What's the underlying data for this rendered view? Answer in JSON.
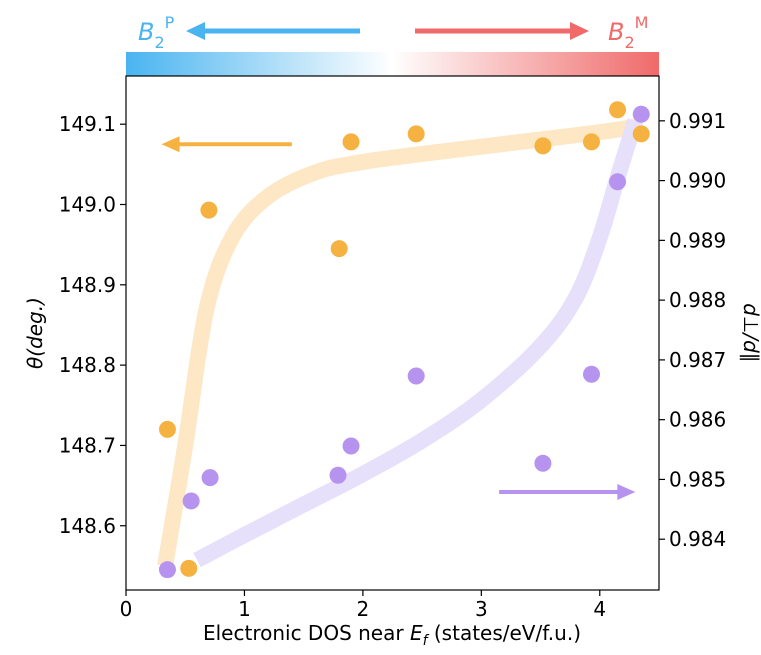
{
  "chart_data": {
    "type": "scatter",
    "xlabel_prefix": "Electronic DOS near ",
    "xlabel_var": "E",
    "xlabel_sub": "f",
    "xlabel_suffix": " (states/eV/f.u.)",
    "ylabel": "θ(deg.)",
    "y2label": "d⊥/d∥",
    "xlim": [
      0,
      4.5
    ],
    "ylim": [
      148.52,
      149.16
    ],
    "y2lim": [
      0.98315,
      0.99175
    ],
    "x_ticks": [
      0,
      1,
      2,
      3,
      4
    ],
    "y_ticks": [
      148.6,
      148.7,
      148.8,
      148.9,
      149.0,
      149.1
    ],
    "y_tick_labels": [
      "148.6",
      "148.7",
      "148.8",
      "148.9",
      "149.0",
      "149.1"
    ],
    "y2_ticks": [
      0.984,
      0.985,
      0.986,
      0.987,
      0.988,
      0.989,
      0.99,
      0.991
    ],
    "y2_tick_labels": [
      "0.984",
      "0.985",
      "0.986",
      "0.987",
      "0.988",
      "0.989",
      "0.990",
      "0.991"
    ],
    "grid": false,
    "phase_bar": {
      "left_label_base": "B",
      "left_label_sub": "2",
      "left_label_sup": "P",
      "right_label_base": "B",
      "right_label_sub": "2",
      "right_label_sup": "M",
      "left_color": "#4ab4f0",
      "right_color": "#f06a6a"
    },
    "series": [
      {
        "axis": "left",
        "color": "#f5b240",
        "trend_color": "#fde7c4",
        "points": [
          [
            0.35,
            148.72
          ],
          [
            0.53,
            148.547
          ],
          [
            0.7,
            148.993
          ],
          [
            1.8,
            148.945
          ],
          [
            1.9,
            149.078
          ],
          [
            2.45,
            149.088
          ],
          [
            3.52,
            149.073
          ],
          [
            3.93,
            149.078
          ],
          [
            4.15,
            149.118
          ],
          [
            4.35,
            149.088
          ]
        ],
        "trend": [
          [
            0.33,
            148.55
          ],
          [
            0.5,
            148.7
          ],
          [
            0.68,
            148.87
          ],
          [
            0.9,
            148.96
          ],
          [
            1.2,
            149.01
          ],
          [
            1.6,
            149.04
          ],
          [
            2.0,
            149.053
          ],
          [
            2.5,
            149.063
          ],
          [
            3.0,
            149.072
          ],
          [
            3.5,
            149.081
          ],
          [
            4.0,
            149.09
          ],
          [
            4.35,
            149.098
          ]
        ]
      },
      {
        "axis": "right",
        "color": "#b793f0",
        "trend_color": "#e6e0fb",
        "points": [
          [
            0.35,
            0.98349
          ],
          [
            0.55,
            0.98464
          ],
          [
            0.71,
            0.98503
          ],
          [
            1.79,
            0.98507
          ],
          [
            1.9,
            0.98556
          ],
          [
            2.45,
            0.98673
          ],
          [
            3.52,
            0.98527
          ],
          [
            3.93,
            0.98676
          ],
          [
            4.15,
            0.98998
          ],
          [
            4.35,
            0.99111
          ]
        ],
        "trend": [
          [
            0.6,
            0.98365
          ],
          [
            1.0,
            0.98407
          ],
          [
            1.5,
            0.98458
          ],
          [
            2.0,
            0.98509
          ],
          [
            2.5,
            0.98565
          ],
          [
            3.0,
            0.98633
          ],
          [
            3.5,
            0.98723
          ],
          [
            3.8,
            0.98805
          ],
          [
            4.0,
            0.98905
          ],
          [
            4.15,
            0.99005
          ],
          [
            4.3,
            0.991
          ]
        ]
      }
    ],
    "arrows": [
      {
        "name": "left-axis-arrow",
        "color": "#f5b240",
        "direction": "left",
        "from": [
          1.4,
          149.075
        ],
        "to": [
          0.3,
          149.075
        ]
      },
      {
        "name": "right-axis-arrow",
        "color": "#b793f0",
        "direction": "right",
        "from": [
          3.15,
          0.98479
        ],
        "to": [
          4.3,
          0.98479
        ]
      }
    ]
  }
}
